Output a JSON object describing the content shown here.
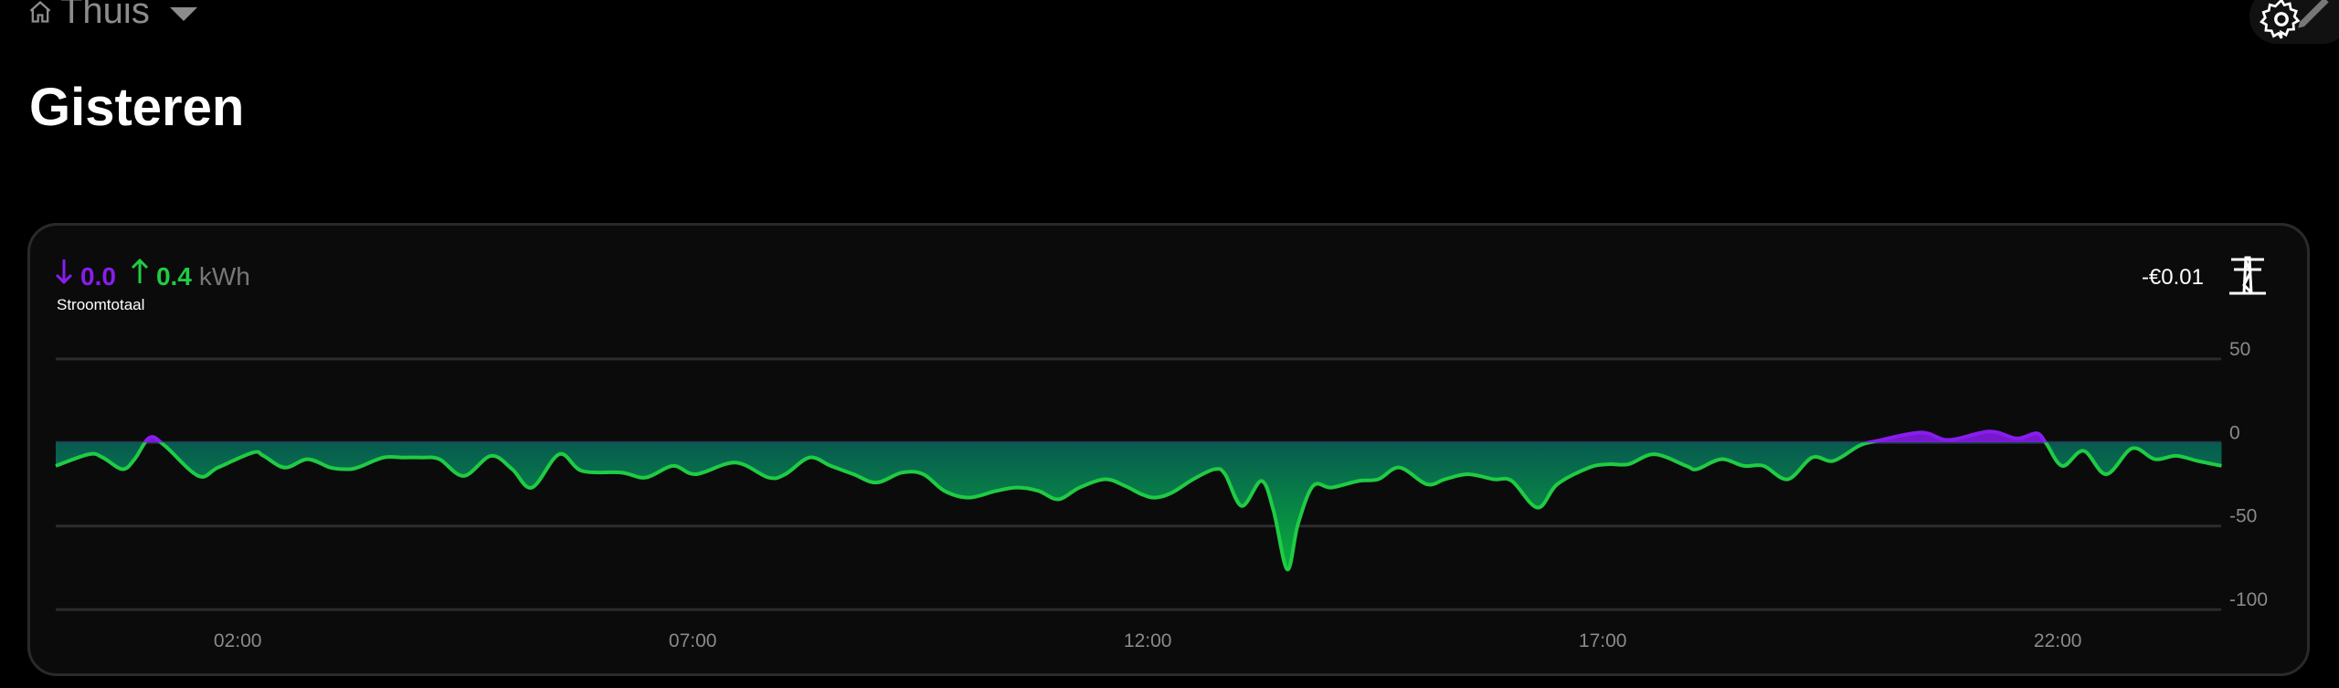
{
  "header": {
    "dashboard": "Thuis",
    "icons": {
      "home": "home-icon",
      "menu": "caret-down-icon",
      "settings": "gear-pencil-icon"
    }
  },
  "page": {
    "title": "Gisteren"
  },
  "card": {
    "import_value": "0.0",
    "export_value": "0.4",
    "unit": "kWh",
    "label": "Stroomtotaal",
    "cost": "-€0.01",
    "icons": {
      "import": "arrow-down-icon",
      "export": "arrow-up-icon",
      "entity": "transmission-tower-icon"
    },
    "colors": {
      "import": "#8a1cf0",
      "export": "#1fcc44",
      "fill_top": "#075a50",
      "fill_bottom": "#0a9a3e"
    }
  },
  "chart_data": {
    "type": "area",
    "ylim": [
      -100,
      50
    ],
    "yticks": [
      "50",
      "0",
      "-50",
      "-100"
    ],
    "xticks": [
      "02:00",
      "07:00",
      "12:00",
      "17:00",
      "22:00"
    ],
    "grid": true,
    "x": [
      "00:00",
      "00:22",
      "00:31",
      "00:44",
      "00:52",
      "01:02",
      "01:12",
      "01:34",
      "01:47",
      "02:10",
      "02:17",
      "02:31",
      "02:46",
      "03:01",
      "03:11",
      "03:19",
      "03:36",
      "03:49",
      "04:01",
      "04:13",
      "04:29",
      "04:47",
      "05:01",
      "05:14",
      "05:32",
      "05:47",
      "06:13",
      "06:29",
      "06:47",
      "07:02",
      "07:28",
      "07:50",
      "08:01",
      "08:17",
      "08:31",
      "08:46",
      "09:01",
      "09:18",
      "09:32",
      "09:46",
      "10:02",
      "10:20",
      "10:34",
      "10:48",
      "11:01",
      "11:15",
      "11:32",
      "11:45",
      "11:56",
      "12:05",
      "12:16",
      "12:30",
      "12:44",
      "12:51",
      "13:02",
      "13:15",
      "13:23",
      "13:32",
      "13:39",
      "13:49",
      "14:01",
      "14:19",
      "14:32",
      "14:46",
      "15:04",
      "15:16",
      "15:31",
      "15:48",
      "16:00",
      "16:17",
      "16:30",
      "16:51",
      "17:04",
      "17:17",
      "17:34",
      "17:55",
      "18:02",
      "18:18",
      "18:33",
      "18:46",
      "19:02",
      "19:18",
      "19:32",
      "19:49",
      "20:01",
      "20:30",
      "20:48",
      "21:15",
      "21:33",
      "21:46",
      "21:52",
      "22:03",
      "22:17",
      "22:32",
      "22:49",
      "23:04",
      "23:18",
      "23:32",
      "23:48"
    ],
    "y": [
      -14,
      -7,
      -9,
      -16,
      -10,
      3,
      -2,
      -20,
      -15,
      -6,
      -8,
      -15,
      -10,
      -15,
      -16,
      -15,
      -9,
      -9,
      -9,
      -10,
      -20,
      -8,
      -16,
      -27,
      -7,
      -17,
      -18,
      -21,
      -14,
      -19,
      -12,
      -21,
      -19,
      -9,
      -14,
      -19,
      -24,
      -18,
      -19,
      -29,
      -33,
      -29,
      -27,
      -29,
      -34,
      -27,
      -22,
      -26,
      -31,
      -33,
      -30,
      -22,
      -16,
      -19,
      -38,
      -23,
      -41,
      -76,
      -49,
      -26,
      -27,
      -23,
      -22,
      -15,
      -25,
      -22,
      -19,
      -22,
      -23,
      -39,
      -25,
      -15,
      -13,
      -13,
      -7,
      -14,
      -16,
      -10,
      -14,
      -14,
      -22,
      -9,
      -11,
      -2,
      1,
      6,
      1.5,
      6.6,
      2.4,
      5.5,
      0,
      -14,
      -5,
      -19,
      -3.5,
      -10,
      -8,
      -11,
      -14
    ]
  }
}
